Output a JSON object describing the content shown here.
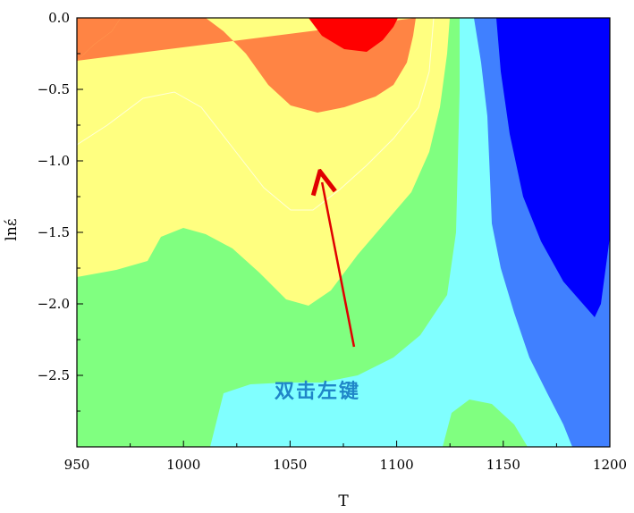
{
  "chart_data": {
    "type": "contour",
    "xlabel": "T",
    "ylabel": "lnέ",
    "xlim": [
      950,
      1200
    ],
    "ylim": [
      -3.0,
      0.0
    ],
    "x_ticks": [
      "950",
      "1000",
      "1050",
      "1100",
      "1150",
      "1200"
    ],
    "y_ticks": [
      "0.0",
      "−0.5",
      "−1.0",
      "−1.5",
      "−2.0",
      "−2.5"
    ],
    "contour_levels": [
      {
        "color": "#ff0000"
      },
      {
        "color": "#ff8444"
      },
      {
        "color": "#ffff80"
      },
      {
        "color": "#80ff80"
      },
      {
        "color": "#80ffff"
      },
      {
        "color": "#4080ff"
      },
      {
        "color": "#0000ff"
      }
    ],
    "annotation": {
      "text": "双击左键",
      "arrow_from": [
        1080,
        -2.3
      ],
      "arrow_to": [
        1065,
        -1.15
      ],
      "arrow_color": "#e00000"
    }
  }
}
